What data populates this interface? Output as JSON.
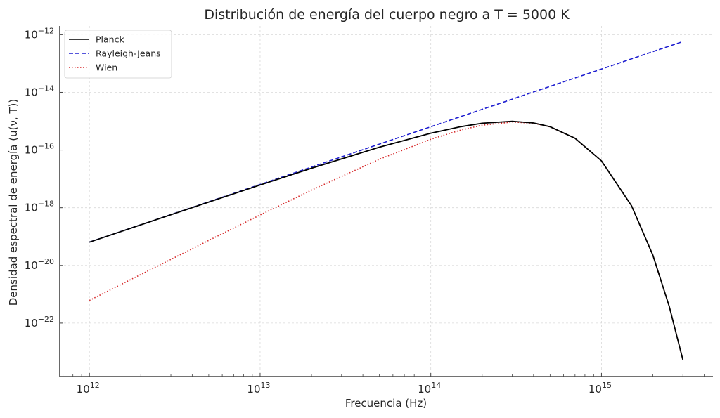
{
  "chart_data": {
    "type": "line",
    "title": "Distribución de energía del cuerpo negro a T = 5000 K",
    "xlabel": "Frecuencia (Hz)",
    "ylabel": "Densidad espectral de energía (u(ν, T))",
    "xscale": "log",
    "yscale": "log",
    "xlim": [
      670000000000.0,
      4500000000000000.0
    ],
    "ylim": [
      1.4e-24,
      2e-12
    ],
    "xticks": [
      {
        "value": 1000000000000.0,
        "base": "10",
        "exp": "12"
      },
      {
        "value": 10000000000000.0,
        "base": "10",
        "exp": "13"
      },
      {
        "value": 100000000000000.0,
        "base": "10",
        "exp": "14"
      },
      {
        "value": 1000000000000000.0,
        "base": "10",
        "exp": "15"
      }
    ],
    "yticks": [
      {
        "value": 1e-12,
        "base": "10",
        "exp": "−12"
      },
      {
        "value": 1e-14,
        "base": "10",
        "exp": "−14"
      },
      {
        "value": 1e-16,
        "base": "10",
        "exp": "−16"
      },
      {
        "value": 1e-18,
        "base": "10",
        "exp": "−18"
      },
      {
        "value": 1e-20,
        "base": "10",
        "exp": "−20"
      },
      {
        "value": 1e-22,
        "base": "10",
        "exp": "−22"
      }
    ],
    "grid": true,
    "legend_position": "top-left",
    "x": [
      1000000000000.0,
      2000000000000.0,
      5000000000000.0,
      10000000000000.0,
      20000000000000.0,
      50000000000000.0,
      100000000000000.0,
      150000000000000.0,
      200000000000000.0,
      300000000000000.0,
      400000000000000.0,
      500000000000000.0,
      700000000000000.0,
      1000000000000000.0,
      1500000000000000.0,
      2000000000000000.0,
      2500000000000000.0,
      3000000000000000.0
    ],
    "series": [
      {
        "name": "Planck",
        "color": "#000000",
        "dash": "solid",
        "values": [
          6.409e-20,
          2.551e-19,
          1.5716e-18,
          6.135e-18,
          2.3365e-17,
          1.2544e-16,
          3.836e-16,
          6.479e-16,
          8.498e-16,
          9.932e-16,
          8.698e-16,
          6.421e-16,
          2.566e-16,
          4.202e-17,
          1.168e-18,
          2.281e-20,
          3.669e-22,
          5.22e-24
        ]
      },
      {
        "name": "Rayleigh-Jeans",
        "color": "#1f1fd0",
        "dash": "dashed",
        "values": [
          6.44e-20,
          2.576e-19,
          1.61e-18,
          6.44e-18,
          2.576e-17,
          1.61e-16,
          6.44e-16,
          1.449e-15,
          2.576e-15,
          5.796e-15,
          1.03e-14,
          1.61e-14,
          3.155e-14,
          6.44e-14,
          1.449e-13,
          2.576e-13,
          4.025e-13,
          5.796e-13
        ]
      },
      {
        "name": "Wien",
        "color": "#d62728",
        "dash": "dotted",
        "values": [
          6.121e-22,
          4.85e-21,
          7.363e-20,
          5.614e-19,
          4.081e-18,
          4.781e-17,
          2.367e-16,
          4.943e-16,
          7.252e-16,
          9.374e-16,
          8.511e-16,
          6.368e-16,
          2.563e-16,
          4.202e-17,
          1.168e-18,
          2.281e-20,
          3.669e-22,
          5.22e-24
        ]
      }
    ]
  }
}
